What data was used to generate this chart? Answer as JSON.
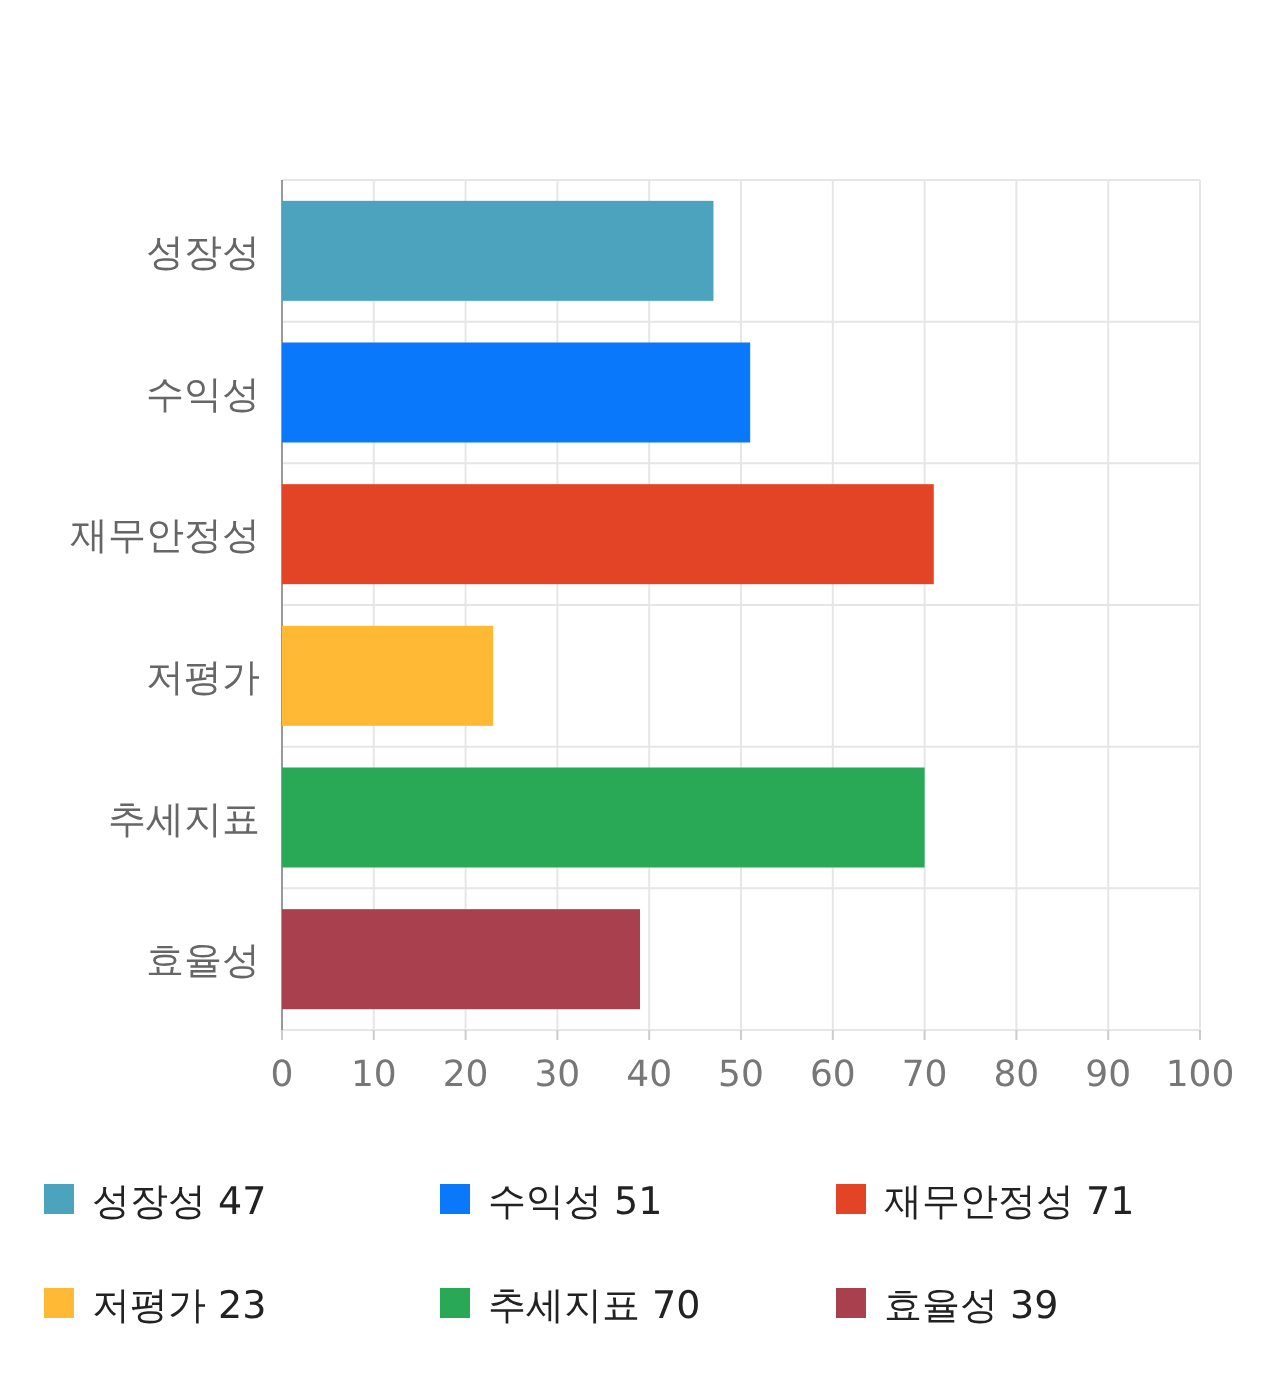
{
  "chart_data": {
    "type": "bar",
    "orientation": "horizontal",
    "categories": [
      "성장성",
      "수익성",
      "재무안정성",
      "저평가",
      "추세지표",
      "효율성"
    ],
    "series": [
      {
        "name": "성장성 47",
        "color": "#4ba3bd",
        "values": [
          47,
          null,
          null,
          null,
          null,
          null
        ]
      },
      {
        "name": "수익성 51",
        "color": "#0a78fb",
        "values": [
          null,
          51,
          null,
          null,
          null,
          null
        ]
      },
      {
        "name": "재무안정성 71",
        "color": "#e24425",
        "values": [
          null,
          null,
          71,
          null,
          null,
          null
        ]
      },
      {
        "name": "저평가 23",
        "color": "#ffb935",
        "values": [
          null,
          null,
          null,
          23,
          null,
          null
        ]
      },
      {
        "name": "추세지표 70",
        "color": "#29a855",
        "values": [
          null,
          null,
          null,
          null,
          70,
          null
        ]
      },
      {
        "name": "효율성 39",
        "color": "#a8404e",
        "values": [
          null,
          null,
          null,
          null,
          null,
          39
        ]
      }
    ],
    "xlim": [
      0,
      100
    ],
    "xticks": [
      0,
      10,
      20,
      30,
      40,
      50,
      60,
      70,
      80,
      90,
      100
    ],
    "grid": true,
    "legend": "bottom"
  }
}
